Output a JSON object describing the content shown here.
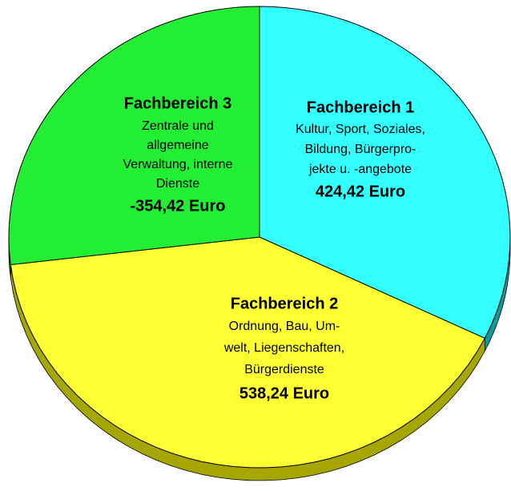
{
  "chart_data": {
    "type": "pie",
    "categories": [
      "Fachbereich 1",
      "Fachbereich 2",
      "Fachbereich 3"
    ],
    "descriptions": [
      [
        "Kultur, Sport, Soziales,",
        "Bildung, Bürgerpro-",
        "jekte u. -angebote"
      ],
      [
        "Ordnung, Bau, Um-",
        "welt, Liegenschaften,",
        "Bürgerdienste"
      ],
      [
        "Zentrale und",
        "allgemeine",
        "Verwaltung, interne",
        "Dienste"
      ]
    ],
    "values": [
      424.42,
      538.24,
      -354.42
    ],
    "value_labels": [
      "424,42 Euro",
      "538,24 Euro",
      "-354,42 Euro"
    ],
    "colors": [
      "#33ffff",
      "#ffff33",
      "#22ee33"
    ],
    "side_colors": [
      "#119999",
      "#a6a600",
      "#119922"
    ]
  }
}
